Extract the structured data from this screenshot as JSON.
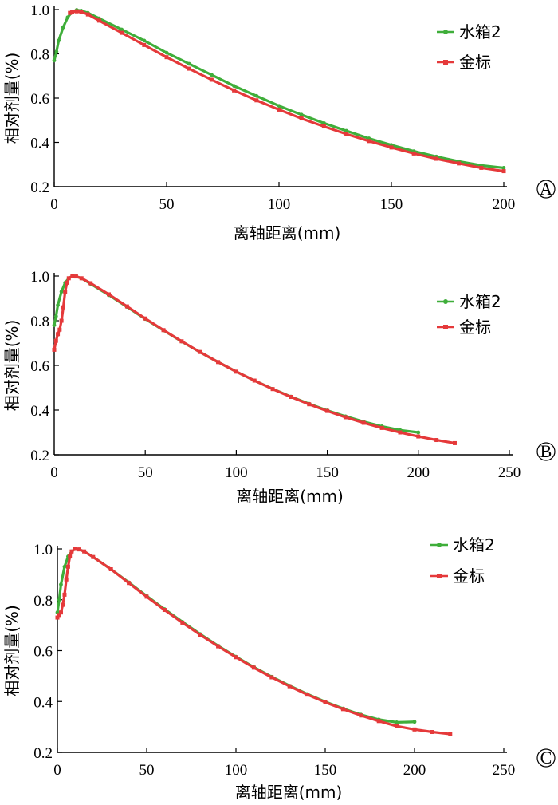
{
  "colors": {
    "water": "#3fae3a",
    "gold": "#e5393a",
    "axis": "#000000"
  },
  "chart_data": [
    {
      "type": "line",
      "panel_label": "A",
      "xlabel": "离轴距离(mm)",
      "ylabel": "相对剂量(%)",
      "xlim": [
        0,
        200
      ],
      "ylim": [
        0.2,
        1.0
      ],
      "xticks": [
        0,
        50,
        100,
        150,
        200
      ],
      "yticks": [
        0.2,
        0.4,
        0.6,
        0.8,
        1.0
      ],
      "legend": "top-right",
      "series": [
        {
          "name": "水箱2",
          "color_key": "water",
          "marker": "dot",
          "x": [
            0,
            1,
            2,
            4,
            6,
            8,
            10,
            12,
            15,
            20,
            30,
            40,
            50,
            60,
            70,
            80,
            90,
            100,
            110,
            120,
            130,
            140,
            150,
            160,
            170,
            180,
            190,
            200
          ],
          "y": [
            0.77,
            0.81,
            0.86,
            0.92,
            0.965,
            0.99,
            0.998,
            0.995,
            0.985,
            0.96,
            0.91,
            0.86,
            0.805,
            0.755,
            0.705,
            0.655,
            0.61,
            0.565,
            0.525,
            0.487,
            0.452,
            0.418,
            0.388,
            0.36,
            0.336,
            0.314,
            0.296,
            0.285
          ]
        },
        {
          "name": "金标",
          "color_key": "gold",
          "marker": "square",
          "x": [
            7,
            8,
            10,
            12,
            15,
            20,
            30,
            40,
            50,
            60,
            70,
            80,
            90,
            100,
            110,
            120,
            130,
            140,
            150,
            160,
            170,
            180,
            190,
            200
          ],
          "y": [
            0.985,
            0.99,
            0.992,
            0.99,
            0.978,
            0.95,
            0.895,
            0.84,
            0.785,
            0.733,
            0.683,
            0.635,
            0.59,
            0.548,
            0.508,
            0.472,
            0.438,
            0.406,
            0.377,
            0.35,
            0.326,
            0.305,
            0.285,
            0.27
          ]
        }
      ]
    },
    {
      "type": "line",
      "panel_label": "B",
      "xlabel": "离轴距离(mm)",
      "ylabel": "相对剂量(%)",
      "xlim": [
        0,
        250
      ],
      "ylim": [
        0.2,
        1.0
      ],
      "xticks": [
        0,
        50,
        100,
        150,
        200,
        250
      ],
      "yticks": [
        0.2,
        0.4,
        0.6,
        0.8,
        1.0
      ],
      "legend": "top-right",
      "series": [
        {
          "name": "水箱2",
          "color_key": "water",
          "marker": "dot",
          "x": [
            0,
            1,
            2,
            4,
            6,
            8,
            10,
            12,
            15,
            20,
            30,
            40,
            50,
            60,
            70,
            80,
            90,
            100,
            110,
            120,
            130,
            140,
            150,
            160,
            170,
            180,
            190,
            200
          ],
          "y": [
            0.78,
            0.82,
            0.87,
            0.93,
            0.97,
            0.99,
            1.0,
            0.998,
            0.99,
            0.965,
            0.915,
            0.862,
            0.808,
            0.757,
            0.707,
            0.66,
            0.615,
            0.572,
            0.532,
            0.495,
            0.46,
            0.428,
            0.398,
            0.372,
            0.348,
            0.327,
            0.31,
            0.3
          ]
        },
        {
          "name": "金标",
          "color_key": "gold",
          "marker": "square",
          "x": [
            0,
            1,
            2,
            3,
            4,
            5,
            6,
            7,
            8,
            10,
            12,
            15,
            20,
            30,
            40,
            50,
            60,
            70,
            80,
            90,
            100,
            110,
            120,
            130,
            140,
            150,
            160,
            170,
            180,
            190,
            200,
            210,
            220
          ],
          "y": [
            0.67,
            0.71,
            0.74,
            0.76,
            0.8,
            0.86,
            0.93,
            0.97,
            0.99,
            1.0,
            0.998,
            0.99,
            0.968,
            0.918,
            0.864,
            0.81,
            0.758,
            0.708,
            0.66,
            0.615,
            0.572,
            0.532,
            0.494,
            0.459,
            0.426,
            0.396,
            0.368,
            0.343,
            0.32,
            0.3,
            0.282,
            0.266,
            0.252
          ]
        }
      ]
    },
    {
      "type": "line",
      "panel_label": "C",
      "xlabel": "离轴距离(mm)",
      "ylabel": "相对剂量(%)",
      "xlim": [
        0,
        250
      ],
      "ylim": [
        0.2,
        1.0
      ],
      "xticks": [
        0,
        50,
        100,
        150,
        200,
        250
      ],
      "yticks": [
        0.2,
        0.4,
        0.6,
        0.8,
        1.0
      ],
      "legend": "top-right",
      "series": [
        {
          "name": "水箱2",
          "color_key": "water",
          "marker": "dot",
          "x": [
            0,
            1,
            2,
            4,
            6,
            8,
            10,
            12,
            15,
            20,
            30,
            40,
            50,
            60,
            70,
            80,
            90,
            100,
            110,
            120,
            130,
            140,
            150,
            160,
            170,
            180,
            190,
            200
          ],
          "y": [
            0.75,
            0.8,
            0.86,
            0.93,
            0.97,
            0.99,
            1.0,
            0.998,
            0.99,
            0.968,
            0.92,
            0.868,
            0.815,
            0.763,
            0.713,
            0.665,
            0.619,
            0.576,
            0.535,
            0.497,
            0.462,
            0.429,
            0.399,
            0.372,
            0.348,
            0.329,
            0.318,
            0.32
          ]
        },
        {
          "name": "金标",
          "color_key": "gold",
          "marker": "square",
          "x": [
            0,
            1,
            2,
            3,
            4,
            5,
            6,
            7,
            8,
            10,
            12,
            15,
            20,
            30,
            40,
            50,
            60,
            70,
            80,
            90,
            100,
            110,
            120,
            130,
            140,
            150,
            160,
            170,
            180,
            190,
            200,
            210,
            220
          ],
          "y": [
            0.73,
            0.74,
            0.75,
            0.78,
            0.82,
            0.88,
            0.93,
            0.97,
            0.99,
            1.0,
            0.998,
            0.99,
            0.968,
            0.92,
            0.866,
            0.812,
            0.76,
            0.71,
            0.662,
            0.617,
            0.574,
            0.533,
            0.495,
            0.46,
            0.427,
            0.397,
            0.37,
            0.345,
            0.323,
            0.303,
            0.29,
            0.28,
            0.272
          ]
        }
      ]
    }
  ]
}
